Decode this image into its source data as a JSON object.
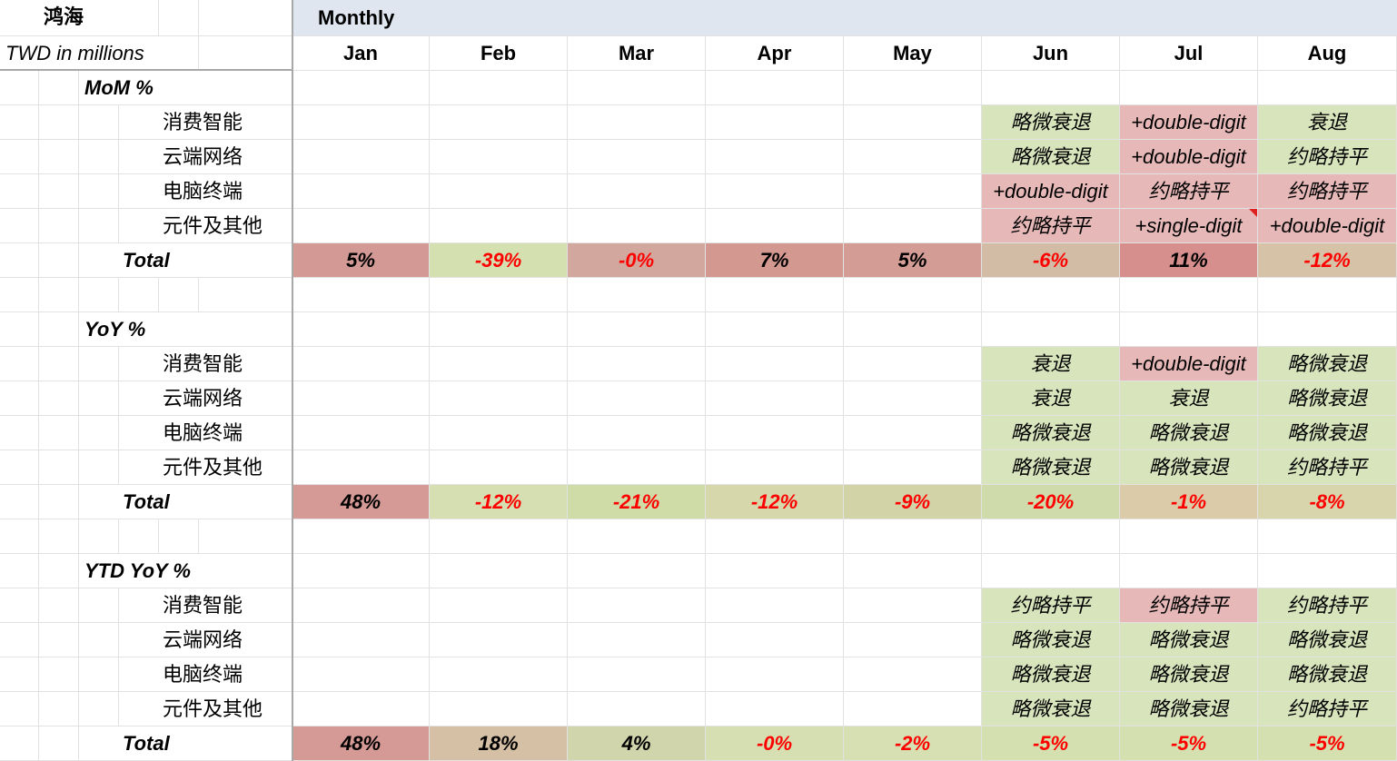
{
  "sheet": {
    "company": "鸿海",
    "unit": "TWD in millions",
    "band_label": "Monthly",
    "months": [
      "Jan",
      "Feb",
      "Mar",
      "Apr",
      "May",
      "Jun",
      "Jul",
      "Aug"
    ],
    "colors": {
      "increase_red": "#e6b8b7",
      "decline_green": "#d8e4bc",
      "header_band": "#dfe6f0",
      "negative_text": "#ff0000"
    },
    "sections": [
      {
        "label": "MoM %",
        "rows": [
          {
            "label": "消费智能",
            "values": [
              "",
              "",
              "",
              "",
              "",
              "略微衰退",
              "+double-digit",
              "衰退"
            ],
            "tone": [
              "",
              "",
              "",
              "",
              "",
              "green",
              "red",
              "green"
            ]
          },
          {
            "label": "云端网络",
            "values": [
              "",
              "",
              "",
              "",
              "",
              "略微衰退",
              "+double-digit",
              "约略持平"
            ],
            "tone": [
              "",
              "",
              "",
              "",
              "",
              "green",
              "red",
              "green"
            ]
          },
          {
            "label": "电脑终端",
            "values": [
              "",
              "",
              "",
              "",
              "",
              "+double-digit",
              "约略持平",
              "约略持平"
            ],
            "tone": [
              "",
              "",
              "",
              "",
              "",
              "red",
              "red",
              "red"
            ]
          },
          {
            "label": "元件及其他",
            "values": [
              "",
              "",
              "",
              "",
              "",
              "约略持平",
              "+single-digit",
              "+double-digit"
            ],
            "tone": [
              "",
              "",
              "",
              "",
              "",
              "red",
              "red",
              "red"
            ]
          }
        ],
        "total": {
          "label": "Total",
          "values": [
            "5%",
            "-39%",
            "-0%",
            "7%",
            "5%",
            "-6%",
            "11%",
            "-12%"
          ],
          "fill": [
            "#d39a95",
            "#d4e0b0",
            "#d2a79d",
            "#d39890",
            "#d39c95",
            "#d3bca5",
            "#d68f8d",
            "#d6c2a6"
          ]
        }
      },
      {
        "label": "YoY %",
        "rows": [
          {
            "label": "消费智能",
            "values": [
              "",
              "",
              "",
              "",
              "",
              "衰退",
              "+double-digit",
              "略微衰退"
            ],
            "tone": [
              "",
              "",
              "",
              "",
              "",
              "green",
              "red",
              "green"
            ]
          },
          {
            "label": "云端网络",
            "values": [
              "",
              "",
              "",
              "",
              "",
              "衰退",
              "衰退",
              "略微衰退"
            ],
            "tone": [
              "",
              "",
              "",
              "",
              "",
              "green",
              "green",
              "green"
            ]
          },
          {
            "label": "电脑终端",
            "values": [
              "",
              "",
              "",
              "",
              "",
              "略微衰退",
              "略微衰退",
              "略微衰退"
            ],
            "tone": [
              "",
              "",
              "",
              "",
              "",
              "green",
              "green",
              "green"
            ]
          },
          {
            "label": "元件及其他",
            "values": [
              "",
              "",
              "",
              "",
              "",
              "略微衰退",
              "略微衰退",
              "约略持平"
            ],
            "tone": [
              "",
              "",
              "",
              "",
              "",
              "green",
              "green",
              "green"
            ]
          }
        ],
        "total": {
          "label": "Total",
          "values": [
            "48%",
            "-12%",
            "-21%",
            "-12%",
            "-9%",
            "-20%",
            "-1%",
            "-8%"
          ],
          "fill": [
            "#d69a96",
            "#d6dfb2",
            "#cfdca8",
            "#d6d8ac",
            "#d3d3a8",
            "#cfdbaa",
            "#dccba8",
            "#d8d4ac"
          ]
        }
      },
      {
        "label": "YTD YoY %",
        "rows": [
          {
            "label": "消费智能",
            "values": [
              "",
              "",
              "",
              "",
              "",
              "约略持平",
              "约略持平",
              "约略持平"
            ],
            "tone": [
              "",
              "",
              "",
              "",
              "",
              "green",
              "red",
              "green"
            ]
          },
          {
            "label": "云端网络",
            "values": [
              "",
              "",
              "",
              "",
              "",
              "略微衰退",
              "略微衰退",
              "略微衰退"
            ],
            "tone": [
              "",
              "",
              "",
              "",
              "",
              "green",
              "green",
              "green"
            ]
          },
          {
            "label": "电脑终端",
            "values": [
              "",
              "",
              "",
              "",
              "",
              "略微衰退",
              "略微衰退",
              "略微衰退"
            ],
            "tone": [
              "",
              "",
              "",
              "",
              "",
              "green",
              "green",
              "green"
            ]
          },
          {
            "label": "元件及其他",
            "values": [
              "",
              "",
              "",
              "",
              "",
              "略微衰退",
              "略微衰退",
              "约略持平"
            ],
            "tone": [
              "",
              "",
              "",
              "",
              "",
              "green",
              "green",
              "green"
            ]
          }
        ],
        "total": {
          "label": "Total",
          "values": [
            "48%",
            "18%",
            "4%",
            "-0%",
            "-2%",
            "-5%",
            "-5%",
            "-5%"
          ],
          "fill": [
            "#d69a96",
            "#d6c0a5",
            "#d1d5ab",
            "#d5dfb2",
            "#d6e0b2",
            "#d4e0b0",
            "#d4e0b0",
            "#d4e0b0"
          ]
        }
      }
    ]
  }
}
